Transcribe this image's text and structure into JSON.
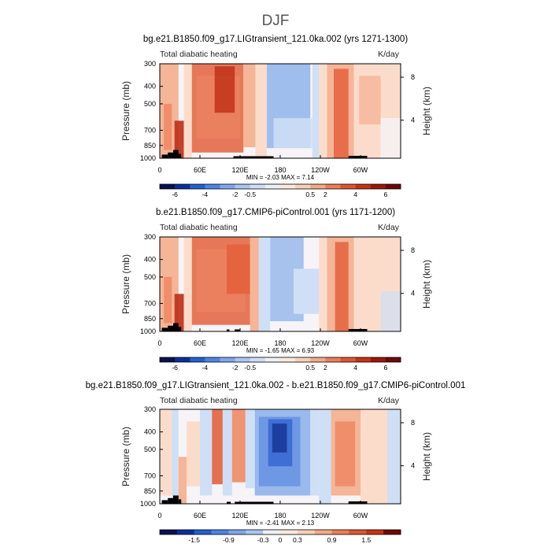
{
  "figure": {
    "title": "DJF"
  },
  "chart_data": [
    {
      "type": "heatmap",
      "title": "bg.e21.B1850.f09_g17.LIGtransient_121.0ka.002 (yrs 1271-1300)",
      "subtitle_left": "Total diabatic heating",
      "units": "K/day",
      "ylabel": "Pressure (mb)",
      "ylabel_right": "Height (km)",
      "x_ticks": [
        "0",
        "60E",
        "120E",
        "180",
        "120W",
        "60W"
      ],
      "y_ticks": [
        "300",
        "400",
        "500",
        "700",
        "850",
        "1000"
      ],
      "y_ticks_right": [
        "8",
        "4"
      ],
      "stats": "MIN =   -2.03   MAX =    7.14",
      "min": -2.03,
      "max": 7.14,
      "colorbar_labels": [
        "-6",
        "-4",
        "-2",
        "-0.5",
        "0.5",
        "2",
        "4",
        "6"
      ],
      "colorbar_levels": [
        -6,
        -5,
        -4,
        -3,
        -2,
        -1,
        -0.5,
        -0.25,
        0.25,
        0.5,
        1,
        2,
        3,
        4,
        5,
        6
      ],
      "ylim": [
        1000,
        300
      ]
    },
    {
      "type": "heatmap",
      "title": "b.e21.B1850.f09_g17.CMIP6-piControl.001 (yrs 1171-1200)",
      "subtitle_left": "Total diabatic heating",
      "units": "K/day",
      "ylabel": "Pressure (mb)",
      "ylabel_right": "Height (km)",
      "x_ticks": [
        "0",
        "60E",
        "120E",
        "180",
        "120W",
        "60W"
      ],
      "y_ticks": [
        "300",
        "400",
        "500",
        "700",
        "850",
        "1000"
      ],
      "y_ticks_right": [
        "8",
        "4"
      ],
      "stats": "MIN =   -1.65   MAX =    6.93",
      "min": -1.65,
      "max": 6.93,
      "colorbar_labels": [
        "-6",
        "-4",
        "-2",
        "-0.5",
        "0.5",
        "2",
        "4",
        "6"
      ],
      "colorbar_levels": [
        -6,
        -5,
        -4,
        -3,
        -2,
        -1,
        -0.5,
        -0.25,
        0.25,
        0.5,
        1,
        2,
        3,
        4,
        5,
        6
      ],
      "ylim": [
        1000,
        300
      ]
    },
    {
      "type": "heatmap",
      "title": "bg.e21.B1850.f09_g17.LIGtransient_121.0ka.002 - b.e21.B1850.f09_g17.CMIP6-piControl.001",
      "subtitle_left": "Total diabatic heating",
      "units": "K/day",
      "ylabel": "Pressure (mb)",
      "ylabel_right": "Height (km)",
      "x_ticks": [
        "0",
        "60E",
        "120E",
        "180",
        "120W",
        "60W"
      ],
      "y_ticks": [
        "300",
        "400",
        "500",
        "700",
        "850",
        "1000"
      ],
      "y_ticks_right": [
        "8",
        "4"
      ],
      "stats": "MIN =   -2.41   MAX =    2.13",
      "min": -2.41,
      "max": 2.13,
      "colorbar_labels": [
        "-1.5",
        "-0.9",
        "-0.3",
        "0",
        "0.3",
        "0.9",
        "1.5"
      ],
      "colorbar_levels": [
        -1.8,
        -1.5,
        -1.2,
        -0.9,
        -0.6,
        -0.3,
        0,
        0.3,
        0.6,
        0.9,
        1.2,
        1.5,
        1.8
      ],
      "ylim": [
        1000,
        300
      ]
    }
  ],
  "colors": {
    "cbar16": [
      "#08104f",
      "#08309b",
      "#2160cf",
      "#4c85e6",
      "#7ea6ee",
      "#a9c6f3",
      "#cfddf8",
      "#ecf0f7",
      "#fbe9de",
      "#f7d0b8",
      "#f4a887",
      "#ec7d5a",
      "#de5532",
      "#c83213",
      "#9c1708",
      "#6e0806"
    ],
    "cbar14": [
      "#08104f",
      "#08309b",
      "#2160cf",
      "#4c85e6",
      "#7ea6ee",
      "#a9c6f3",
      "#ecf0f7",
      "#fbe9de",
      "#f7d0b8",
      "#f4a887",
      "#ec7d5a",
      "#de5532",
      "#c83213",
      "#6e0806"
    ],
    "field_dark_red": "#bd2d14",
    "field_red": "#e4603d",
    "field_orange": "#f08a66",
    "field_salmon": "#f5b597",
    "field_peach": "#fbdccb",
    "field_neutral": "#f6f4f6",
    "field_light_blue": "#cfdff5",
    "field_blue": "#9ab9ec",
    "field_mid_blue": "#6f98e4",
    "field_deep_blue": "#3f6ed5",
    "field_navy": "#1c3f9f",
    "terrain": "#000000"
  }
}
